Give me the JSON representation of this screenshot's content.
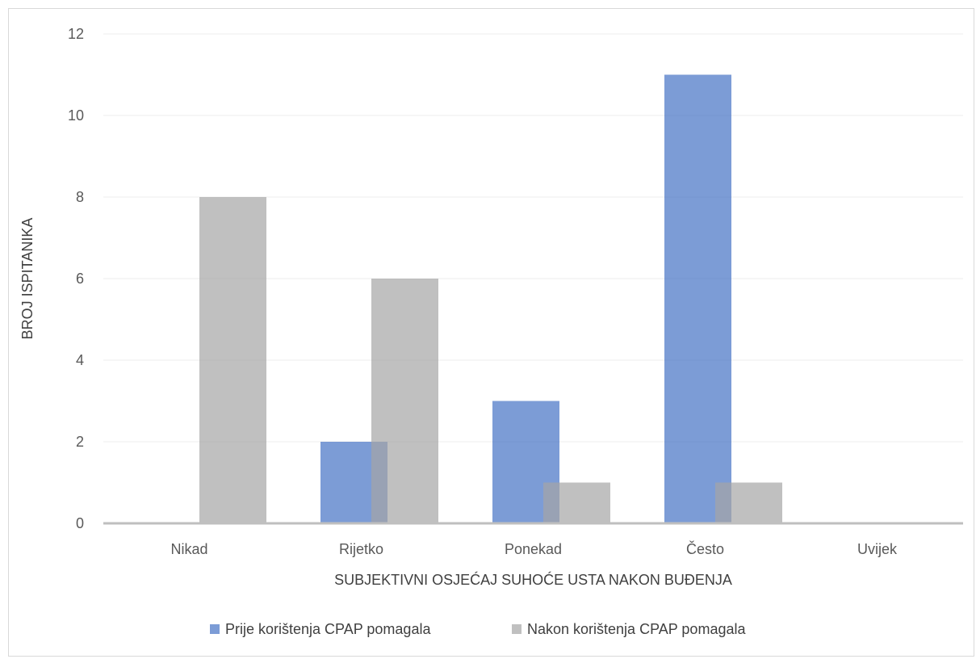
{
  "chart_data": {
    "type": "bar",
    "categories": [
      "Nikad",
      "Rijetko",
      "Ponekad",
      "Često",
      "Uvijek"
    ],
    "series": [
      {
        "name": "Prije korištenja CPAP pomagala",
        "values": [
          0,
          2,
          3,
          11,
          0
        ],
        "color": "#4472c4"
      },
      {
        "name": "Nakon korištenja CPAP pomagala",
        "values": [
          8,
          6,
          1,
          1,
          0
        ],
        "color": "#a5a5a5"
      }
    ],
    "xlabel": "SUBJEKTIVNI OSJEĆAJ SUHOĆE USTA NAKON BUĐENJA",
    "ylabel": "BROJ ISPITANIKA",
    "ylim": [
      0,
      12
    ],
    "yticks": [
      0,
      2,
      4,
      6,
      8,
      10,
      12
    ],
    "grid": true,
    "legend_position": "bottom",
    "overlapping_bars": true
  }
}
